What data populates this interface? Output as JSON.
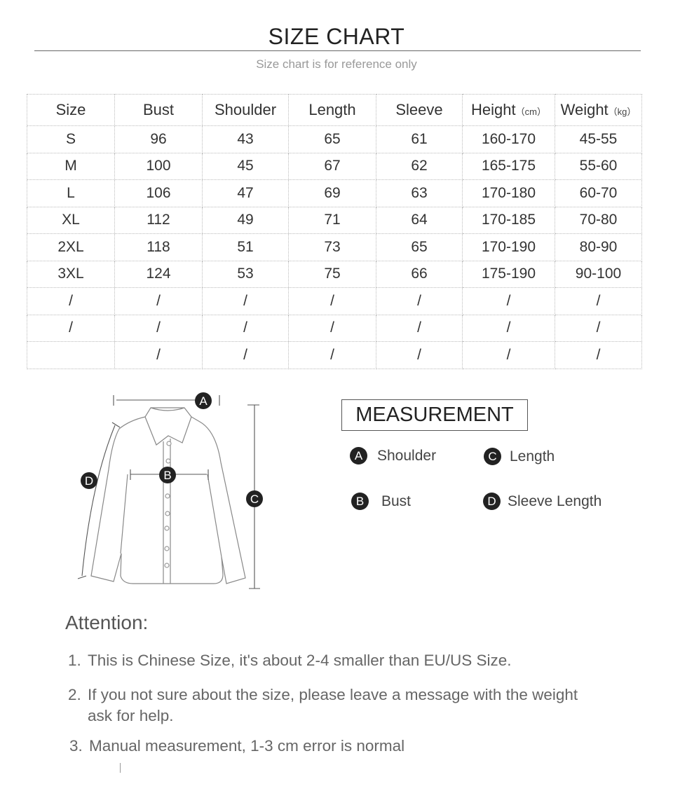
{
  "header": {
    "title": "SIZE CHART",
    "subtitle": "Size chart is for reference only"
  },
  "table": {
    "columns": [
      {
        "label": "Size",
        "unit": ""
      },
      {
        "label": "Bust",
        "unit": ""
      },
      {
        "label": "Shoulder",
        "unit": ""
      },
      {
        "label": "Length",
        "unit": ""
      },
      {
        "label": "Sleeve",
        "unit": ""
      },
      {
        "label": "Height",
        "unit": "（cm）"
      },
      {
        "label": "Weight",
        "unit": "（kg）"
      }
    ],
    "rows": [
      [
        "S",
        "96",
        "43",
        "65",
        "61",
        "160-170",
        "45-55"
      ],
      [
        "M",
        "100",
        "45",
        "67",
        "62",
        "165-175",
        "55-60"
      ],
      [
        "L",
        "106",
        "47",
        "69",
        "63",
        "170-180",
        "60-70"
      ],
      [
        "XL",
        "112",
        "49",
        "71",
        "64",
        "170-185",
        "70-80"
      ],
      [
        "2XL",
        "118",
        "51",
        "73",
        "65",
        "170-190",
        "80-90"
      ],
      [
        "3XL",
        "124",
        "53",
        "75",
        "66",
        "175-190",
        "90-100"
      ],
      [
        "/",
        "/",
        "/",
        "/",
        "/",
        "/",
        "/"
      ],
      [
        "/",
        "/",
        "/",
        "/",
        "/",
        "/",
        "/"
      ],
      [
        "",
        "/",
        "/",
        "/",
        "/",
        "/",
        "/"
      ]
    ]
  },
  "diagram": {
    "markers": [
      "A",
      "B",
      "C",
      "D"
    ]
  },
  "measurement": {
    "title": "MEASUREMENT",
    "items": [
      {
        "key": "A",
        "label": "Shoulder"
      },
      {
        "key": "C",
        "label": "Length"
      },
      {
        "key": "B",
        "label": "Bust"
      },
      {
        "key": "D",
        "label": "Sleeve Length"
      }
    ]
  },
  "attention": {
    "title": "Attention:",
    "notes": [
      {
        "num": "1.",
        "text": "This is Chinese Size, it's about 2-4 smaller than EU/US Size."
      },
      {
        "num": "2.",
        "text": "If you not sure about the size, please leave a message with the weight ask for help."
      },
      {
        "num": "3.",
        "text": "Manual measurement, 1-3 cm error is normal"
      }
    ]
  }
}
